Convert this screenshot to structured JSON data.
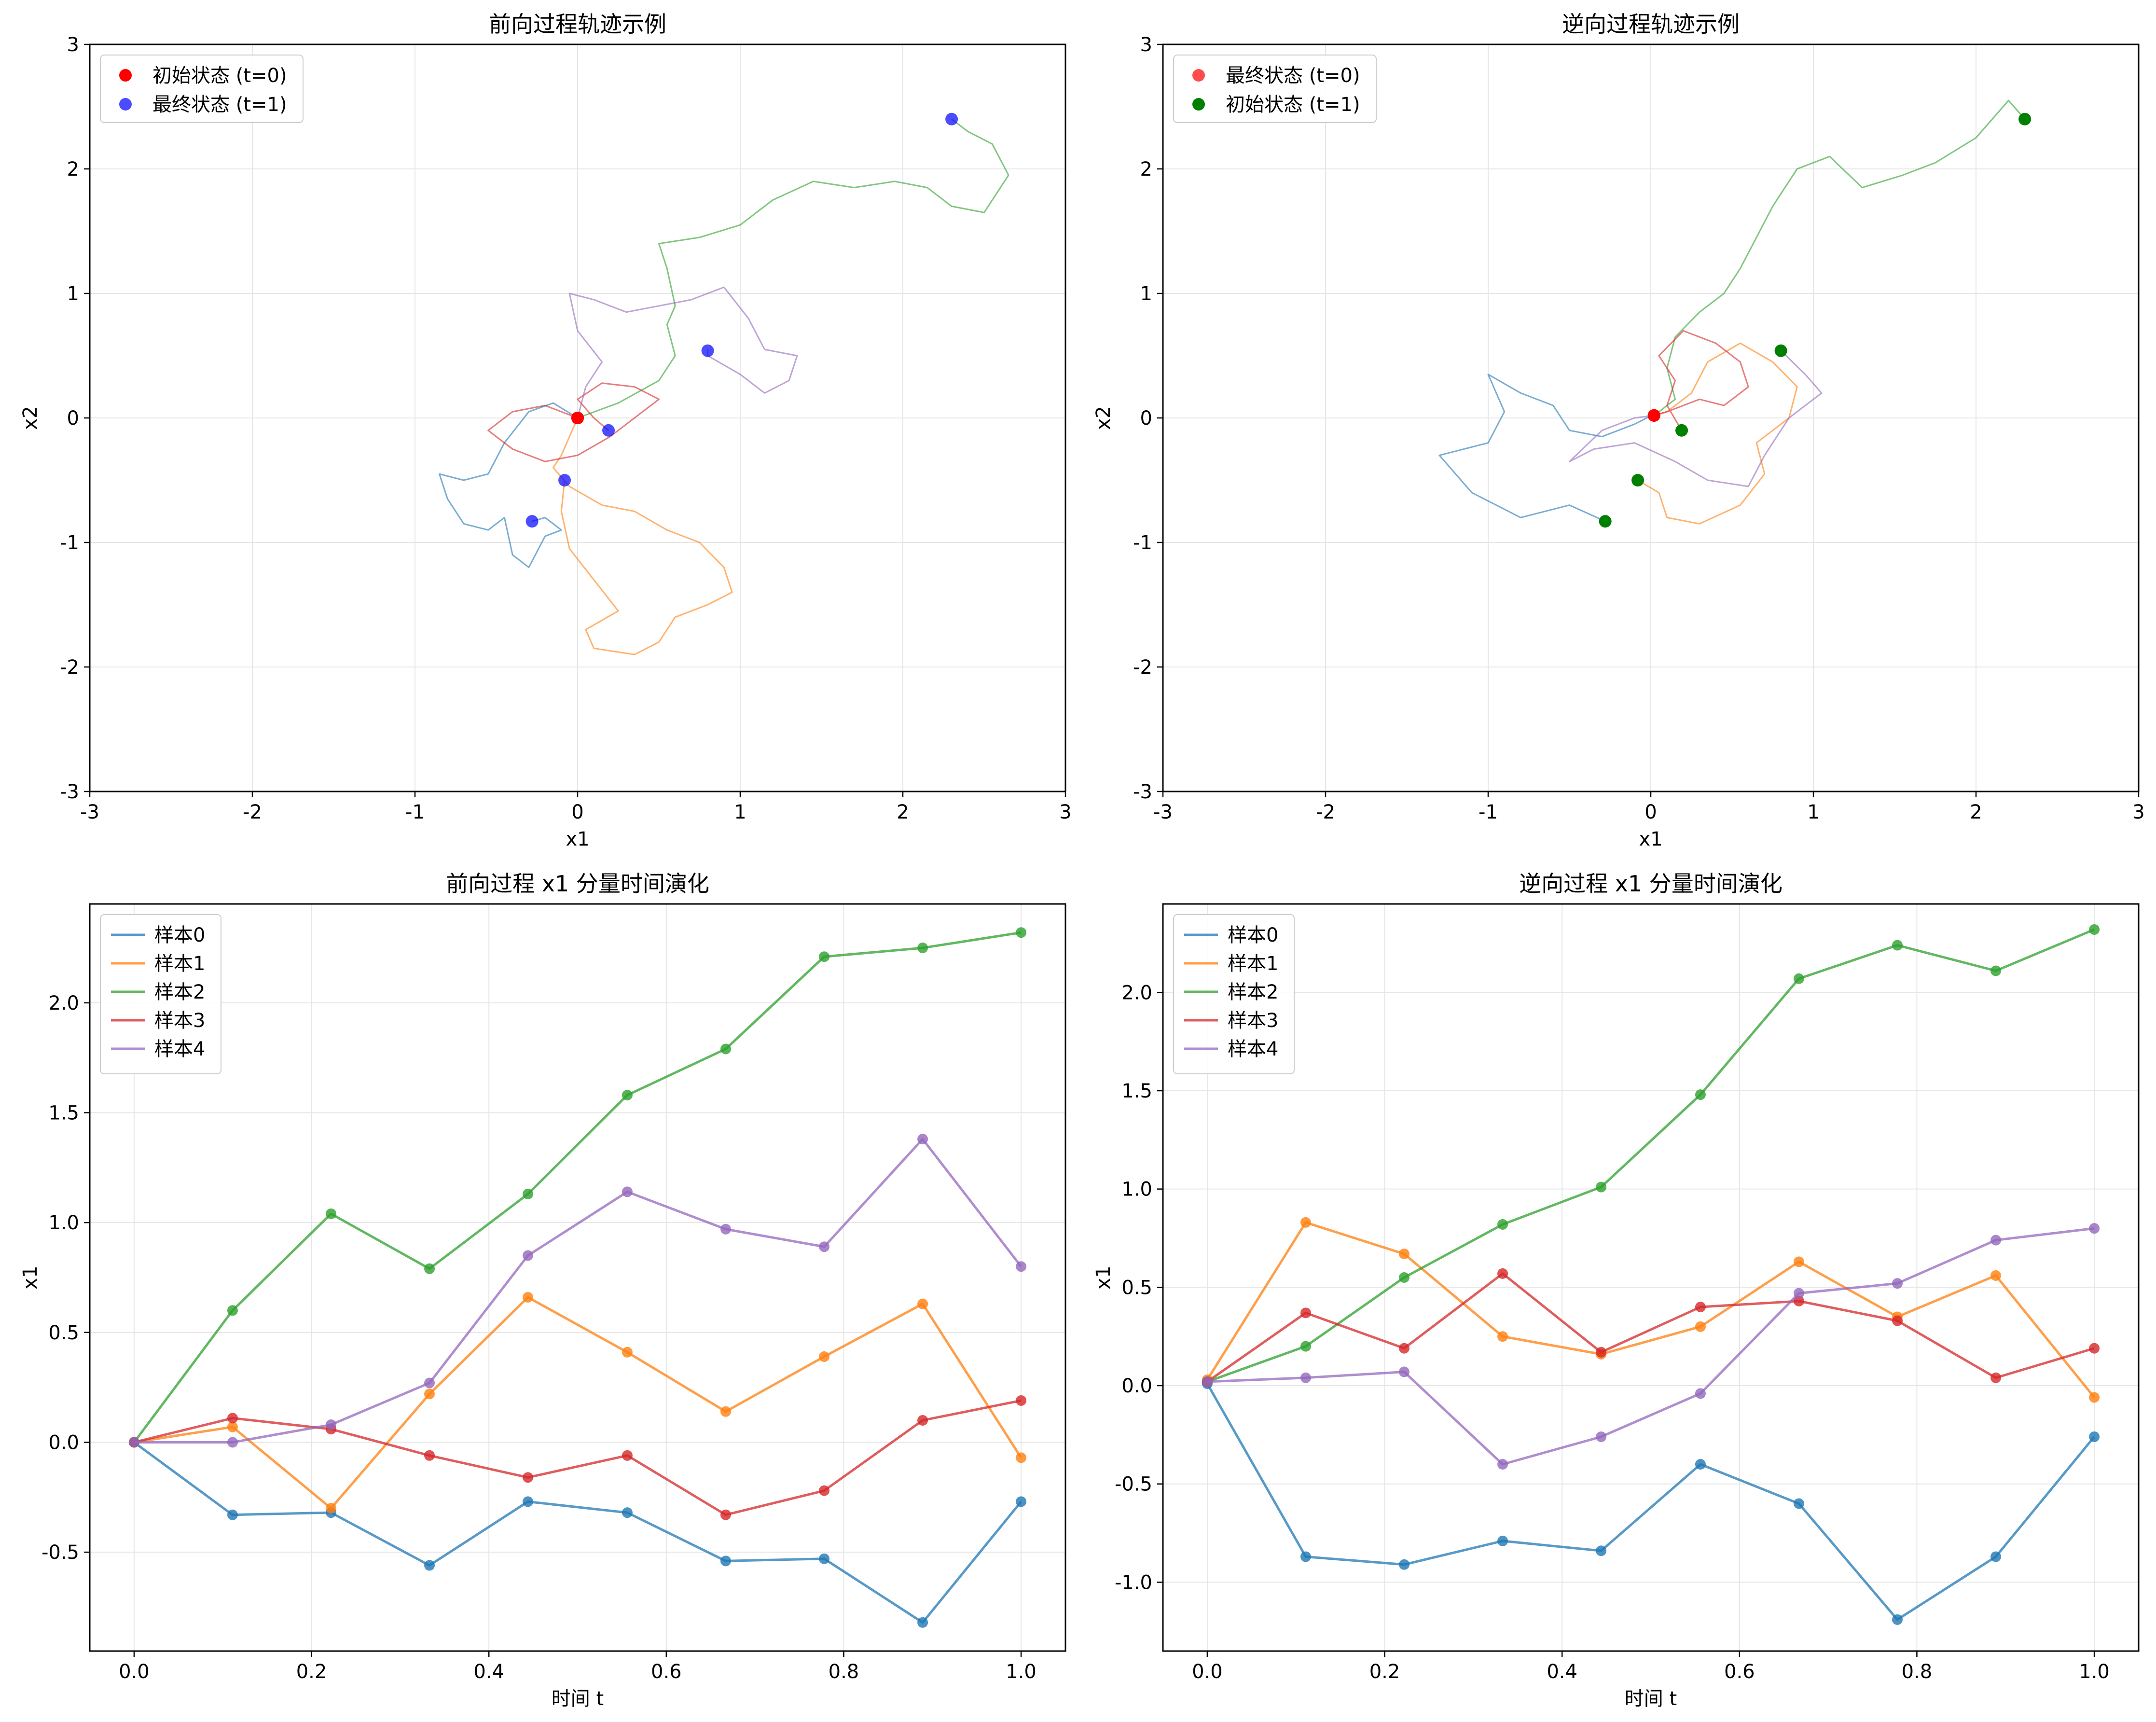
{
  "colors": {
    "c0": "#1f77b4",
    "c1": "#ff7f0e",
    "c2": "#2ca02c",
    "c3": "#d62728",
    "c4": "#9467bd",
    "red": "#ff0000",
    "blue": "#0000ff",
    "green": "#008000",
    "grid": "#e6e6e6"
  },
  "chart_data": [
    {
      "type": "line",
      "title": "前向过程轨迹示例",
      "xlabel": "x1",
      "ylabel": "x2",
      "xlim": [
        -3,
        3
      ],
      "ylim": [
        -3,
        3
      ],
      "xticks": [
        -3,
        -2,
        -1,
        0,
        1,
        2,
        3
      ],
      "yticks": [
        -3,
        -2,
        -1,
        0,
        1,
        2,
        3
      ],
      "xtick_labels": [
        "-3",
        "-2",
        "-1",
        "0",
        "1",
        "2",
        "3"
      ],
      "ytick_labels": [
        "-3",
        "-2",
        "-1",
        "0",
        "1",
        "2",
        "3"
      ],
      "grid": true,
      "legend": "top-left",
      "legend_entries": [
        "初始状态 (t=0)",
        "最终状态 (t=1)"
      ],
      "trajectories": [
        {
          "color": "c0",
          "points": [
            [
              0,
              0
            ],
            [
              -0.15,
              0.12
            ],
            [
              -0.3,
              0.05
            ],
            [
              -0.45,
              -0.2
            ],
            [
              -0.55,
              -0.45
            ],
            [
              -0.7,
              -0.5
            ],
            [
              -0.85,
              -0.45
            ],
            [
              -0.8,
              -0.65
            ],
            [
              -0.7,
              -0.85
            ],
            [
              -0.55,
              -0.9
            ],
            [
              -0.45,
              -0.8
            ],
            [
              -0.4,
              -1.1
            ],
            [
              -0.3,
              -1.2
            ],
            [
              -0.2,
              -0.95
            ],
            [
              -0.1,
              -0.9
            ],
            [
              -0.2,
              -0.8
            ],
            [
              -0.28,
              -0.83
            ]
          ]
        },
        {
          "color": "c1",
          "points": [
            [
              0,
              0
            ],
            [
              -0.1,
              -0.3
            ],
            [
              -0.15,
              -0.4
            ],
            [
              -0.05,
              -0.55
            ],
            [
              0.15,
              -0.7
            ],
            [
              0.35,
              -0.75
            ],
            [
              0.55,
              -0.9
            ],
            [
              0.75,
              -1.0
            ],
            [
              0.9,
              -1.2
            ],
            [
              0.95,
              -1.4
            ],
            [
              0.8,
              -1.5
            ],
            [
              0.6,
              -1.6
            ],
            [
              0.5,
              -1.8
            ],
            [
              0.35,
              -1.9
            ],
            [
              0.1,
              -1.85
            ],
            [
              0.05,
              -1.7
            ],
            [
              0.25,
              -1.55
            ],
            [
              0.1,
              -1.3
            ],
            [
              -0.05,
              -1.05
            ],
            [
              -0.1,
              -0.75
            ],
            [
              -0.08,
              -0.5
            ]
          ]
        },
        {
          "color": "c2",
          "points": [
            [
              0,
              0
            ],
            [
              0.25,
              0.12
            ],
            [
              0.5,
              0.3
            ],
            [
              0.6,
              0.5
            ],
            [
              0.55,
              0.75
            ],
            [
              0.6,
              0.9
            ],
            [
              0.55,
              1.2
            ],
            [
              0.5,
              1.4
            ],
            [
              0.75,
              1.45
            ],
            [
              1.0,
              1.55
            ],
            [
              1.2,
              1.75
            ],
            [
              1.45,
              1.9
            ],
            [
              1.7,
              1.85
            ],
            [
              1.95,
              1.9
            ],
            [
              2.15,
              1.85
            ],
            [
              2.3,
              1.7
            ],
            [
              2.5,
              1.65
            ],
            [
              2.65,
              1.95
            ],
            [
              2.55,
              2.2
            ],
            [
              2.4,
              2.3
            ],
            [
              2.3,
              2.4
            ]
          ]
        },
        {
          "color": "c3",
          "points": [
            [
              0,
              0
            ],
            [
              -0.2,
              0.1
            ],
            [
              -0.4,
              0.05
            ],
            [
              -0.55,
              -0.1
            ],
            [
              -0.4,
              -0.25
            ],
            [
              -0.2,
              -0.35
            ],
            [
              0,
              -0.3
            ],
            [
              0.2,
              -0.15
            ],
            [
              0.4,
              0.05
            ],
            [
              0.5,
              0.15
            ],
            [
              0.35,
              0.25
            ],
            [
              0.15,
              0.28
            ],
            [
              0,
              0.15
            ],
            [
              0.1,
              0
            ],
            [
              0.19,
              -0.1
            ]
          ]
        },
        {
          "color": "c4",
          "points": [
            [
              0,
              0
            ],
            [
              0.05,
              0.25
            ],
            [
              0.15,
              0.45
            ],
            [
              0.0,
              0.7
            ],
            [
              -0.05,
              1.0
            ],
            [
              0.1,
              0.95
            ],
            [
              0.3,
              0.85
            ],
            [
              0.5,
              0.9
            ],
            [
              0.7,
              0.95
            ],
            [
              0.9,
              1.05
            ],
            [
              1.05,
              0.8
            ],
            [
              1.15,
              0.55
            ],
            [
              1.35,
              0.5
            ],
            [
              1.3,
              0.3
            ],
            [
              1.15,
              0.2
            ],
            [
              1.0,
              0.35
            ],
            [
              0.8,
              0.5
            ],
            [
              0.8,
              0.55
            ]
          ]
        }
      ],
      "initial_points": [
        [
          0,
          0
        ],
        [
          0,
          0
        ],
        [
          0,
          0
        ],
        [
          0,
          0
        ],
        [
          0,
          0
        ]
      ],
      "final_points": [
        [
          -0.28,
          -0.83
        ],
        [
          -0.08,
          -0.5
        ],
        [
          2.3,
          2.4
        ],
        [
          0.19,
          -0.1
        ],
        [
          0.8,
          0.54
        ]
      ]
    },
    {
      "type": "line",
      "title": "逆向过程轨迹示例",
      "xlabel": "x1",
      "ylabel": "x2",
      "xlim": [
        -3,
        3
      ],
      "ylim": [
        -3,
        3
      ],
      "xticks": [
        -3,
        -2,
        -1,
        0,
        1,
        2,
        3
      ],
      "yticks": [
        -3,
        -2,
        -1,
        0,
        1,
        2,
        3
      ],
      "xtick_labels": [
        "-3",
        "-2",
        "-1",
        "0",
        "1",
        "2",
        "3"
      ],
      "ytick_labels": [
        "-3",
        "-2",
        "-1",
        "0",
        "1",
        "2",
        "3"
      ],
      "grid": true,
      "legend": "top-left",
      "legend_entries": [
        "最终状态 (t=0)",
        "初始状态 (t=1)"
      ],
      "trajectories": [
        {
          "color": "c0",
          "points": [
            [
              -0.28,
              -0.83
            ],
            [
              -0.5,
              -0.7
            ],
            [
              -0.8,
              -0.8
            ],
            [
              -1.1,
              -0.6
            ],
            [
              -1.3,
              -0.3
            ],
            [
              -1.0,
              -0.2
            ],
            [
              -0.9,
              0.05
            ],
            [
              -1.0,
              0.35
            ],
            [
              -0.8,
              0.2
            ],
            [
              -0.6,
              0.1
            ],
            [
              -0.5,
              -0.1
            ],
            [
              -0.3,
              -0.15
            ],
            [
              -0.1,
              -0.05
            ],
            [
              0.05,
              0.05
            ],
            [
              0.02,
              0.02
            ]
          ]
        },
        {
          "color": "c1",
          "points": [
            [
              -0.08,
              -0.5
            ],
            [
              0.05,
              -0.6
            ],
            [
              0.1,
              -0.8
            ],
            [
              0.3,
              -0.85
            ],
            [
              0.55,
              -0.7
            ],
            [
              0.7,
              -0.45
            ],
            [
              0.65,
              -0.2
            ],
            [
              0.85,
              0
            ],
            [
              0.9,
              0.25
            ],
            [
              0.75,
              0.45
            ],
            [
              0.55,
              0.6
            ],
            [
              0.35,
              0.45
            ],
            [
              0.25,
              0.2
            ],
            [
              0.1,
              0.05
            ],
            [
              0.02,
              0.02
            ]
          ]
        },
        {
          "color": "c2",
          "points": [
            [
              2.3,
              2.4
            ],
            [
              2.2,
              2.55
            ],
            [
              2.0,
              2.25
            ],
            [
              1.75,
              2.05
            ],
            [
              1.55,
              1.95
            ],
            [
              1.3,
              1.85
            ],
            [
              1.1,
              2.1
            ],
            [
              0.9,
              2.0
            ],
            [
              0.75,
              1.7
            ],
            [
              0.65,
              1.45
            ],
            [
              0.55,
              1.2
            ],
            [
              0.45,
              1.0
            ],
            [
              0.3,
              0.85
            ],
            [
              0.15,
              0.65
            ],
            [
              0.1,
              0.4
            ],
            [
              0.15,
              0.15
            ],
            [
              0.02,
              0.02
            ]
          ]
        },
        {
          "color": "c3",
          "points": [
            [
              0.19,
              -0.1
            ],
            [
              0.1,
              0.1
            ],
            [
              0.15,
              0.3
            ],
            [
              0.05,
              0.5
            ],
            [
              0.2,
              0.7
            ],
            [
              0.4,
              0.6
            ],
            [
              0.55,
              0.45
            ],
            [
              0.6,
              0.25
            ],
            [
              0.45,
              0.1
            ],
            [
              0.3,
              0.15
            ],
            [
              0.1,
              0.05
            ],
            [
              0.02,
              0.02
            ]
          ]
        },
        {
          "color": "c4",
          "points": [
            [
              0.8,
              0.54
            ],
            [
              0.95,
              0.35
            ],
            [
              1.05,
              0.2
            ],
            [
              0.85,
              0
            ],
            [
              0.7,
              -0.3
            ],
            [
              0.6,
              -0.55
            ],
            [
              0.35,
              -0.5
            ],
            [
              0.15,
              -0.35
            ],
            [
              -0.1,
              -0.2
            ],
            [
              -0.35,
              -0.25
            ],
            [
              -0.5,
              -0.35
            ],
            [
              -0.3,
              -0.1
            ],
            [
              -0.1,
              0
            ],
            [
              0.02,
              0.02
            ]
          ]
        }
      ],
      "final_points": [
        [
          0.02,
          0.02
        ],
        [
          0.02,
          0.02
        ],
        [
          0.02,
          0.02
        ],
        [
          0.02,
          0.02
        ],
        [
          0.02,
          0.02
        ]
      ],
      "initial_points": [
        [
          -0.28,
          -0.83
        ],
        [
          -0.08,
          -0.5
        ],
        [
          2.3,
          2.4
        ],
        [
          0.19,
          -0.1
        ],
        [
          0.8,
          0.54
        ]
      ]
    },
    {
      "type": "line",
      "title": "前向过程 x1 分量时间演化",
      "xlabel": "时间 t",
      "ylabel": "x1",
      "xlim": [
        -0.05,
        1.05
      ],
      "ylim": [
        -0.95,
        2.45
      ],
      "xticks": [
        0.0,
        0.2,
        0.4,
        0.6,
        0.8,
        1.0
      ],
      "yticks": [
        -0.5,
        0.0,
        0.5,
        1.0,
        1.5,
        2.0
      ],
      "xtick_labels": [
        "0.0",
        "0.2",
        "0.4",
        "0.6",
        "0.8",
        "1.0"
      ],
      "ytick_labels": [
        "-0.5",
        "0.0",
        "0.5",
        "1.0",
        "1.5",
        "2.0"
      ],
      "grid": true,
      "legend": "top-left",
      "x": [
        0.0,
        0.111,
        0.222,
        0.333,
        0.444,
        0.556,
        0.667,
        0.778,
        0.889,
        1.0
      ],
      "series": [
        {
          "name": "样本0",
          "color": "c0",
          "values": [
            0.0,
            -0.33,
            -0.32,
            -0.56,
            -0.27,
            -0.32,
            -0.54,
            -0.53,
            -0.82,
            -0.27
          ]
        },
        {
          "name": "样本1",
          "color": "c1",
          "values": [
            0.0,
            0.07,
            -0.3,
            0.22,
            0.66,
            0.41,
            0.14,
            0.39,
            0.63,
            -0.07
          ]
        },
        {
          "name": "样本2",
          "color": "c2",
          "values": [
            0.0,
            0.6,
            1.04,
            0.79,
            1.13,
            1.58,
            1.79,
            2.21,
            2.25,
            2.32
          ]
        },
        {
          "name": "样本3",
          "color": "c3",
          "values": [
            0.0,
            0.11,
            0.06,
            -0.06,
            -0.16,
            -0.06,
            -0.33,
            -0.22,
            0.1,
            0.19
          ]
        },
        {
          "name": "样本4",
          "color": "c4",
          "values": [
            0.0,
            0.0,
            0.08,
            0.27,
            0.85,
            1.14,
            0.97,
            0.89,
            1.38,
            0.8
          ]
        }
      ]
    },
    {
      "type": "line",
      "title": "逆向过程 x1 分量时间演化",
      "xlabel": "时间 t",
      "ylabel": "x1",
      "xlim": [
        -0.05,
        1.05
      ],
      "ylim": [
        -1.35,
        2.45
      ],
      "xticks": [
        0.0,
        0.2,
        0.4,
        0.6,
        0.8,
        1.0
      ],
      "yticks": [
        -1.0,
        -0.5,
        0.0,
        0.5,
        1.0,
        1.5,
        2.0
      ],
      "xtick_labels": [
        "0.0",
        "0.2",
        "0.4",
        "0.6",
        "0.8",
        "1.0"
      ],
      "ytick_labels": [
        "-1.0",
        "-0.5",
        "0.0",
        "0.5",
        "1.0",
        "1.5",
        "2.0"
      ],
      "grid": true,
      "legend": "top-left",
      "x": [
        0.0,
        0.111,
        0.222,
        0.333,
        0.444,
        0.556,
        0.667,
        0.778,
        0.889,
        1.0
      ],
      "series": [
        {
          "name": "样本0",
          "color": "c0",
          "values": [
            0.01,
            -0.87,
            -0.91,
            -0.79,
            -0.84,
            -0.4,
            -0.6,
            -1.19,
            -0.87,
            -0.26
          ]
        },
        {
          "name": "样本1",
          "color": "c1",
          "values": [
            0.03,
            0.83,
            0.67,
            0.25,
            0.16,
            0.3,
            0.63,
            0.35,
            0.56,
            -0.06
          ]
        },
        {
          "name": "样本2",
          "color": "c2",
          "values": [
            0.02,
            0.2,
            0.55,
            0.82,
            1.01,
            1.48,
            2.07,
            2.24,
            2.11,
            2.32
          ]
        },
        {
          "name": "样本3",
          "color": "c3",
          "values": [
            0.02,
            0.37,
            0.19,
            0.57,
            0.17,
            0.4,
            0.43,
            0.33,
            0.04,
            0.19
          ]
        },
        {
          "name": "样本4",
          "color": "c4",
          "values": [
            0.02,
            0.04,
            0.07,
            -0.4,
            -0.26,
            -0.04,
            0.47,
            0.52,
            0.74,
            0.8
          ]
        }
      ]
    }
  ]
}
